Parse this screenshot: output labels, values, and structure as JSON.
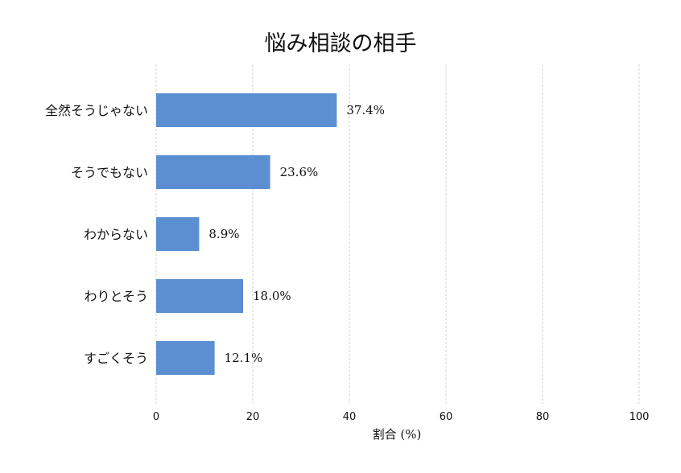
{
  "chart_data": {
    "type": "bar",
    "orientation": "horizontal",
    "title": "悩み相談の相手",
    "xlabel": "割合 (%)",
    "ylabel": "",
    "xlim": [
      0,
      100
    ],
    "xticks": [
      0,
      20,
      40,
      60,
      80,
      100
    ],
    "grid": "vertical dashed",
    "categories": [
      "全然そうじゃない",
      "そうでもない",
      "わからない",
      "わりとそう",
      "すごくそう"
    ],
    "values": [
      37.4,
      23.6,
      8.9,
      18.0,
      12.1
    ],
    "value_labels": [
      "37.4%",
      "23.6%",
      "8.9%",
      "18.0%",
      "12.1%"
    ],
    "bar_color": "#5b8fd1",
    "grid_color": "#cccccc"
  }
}
